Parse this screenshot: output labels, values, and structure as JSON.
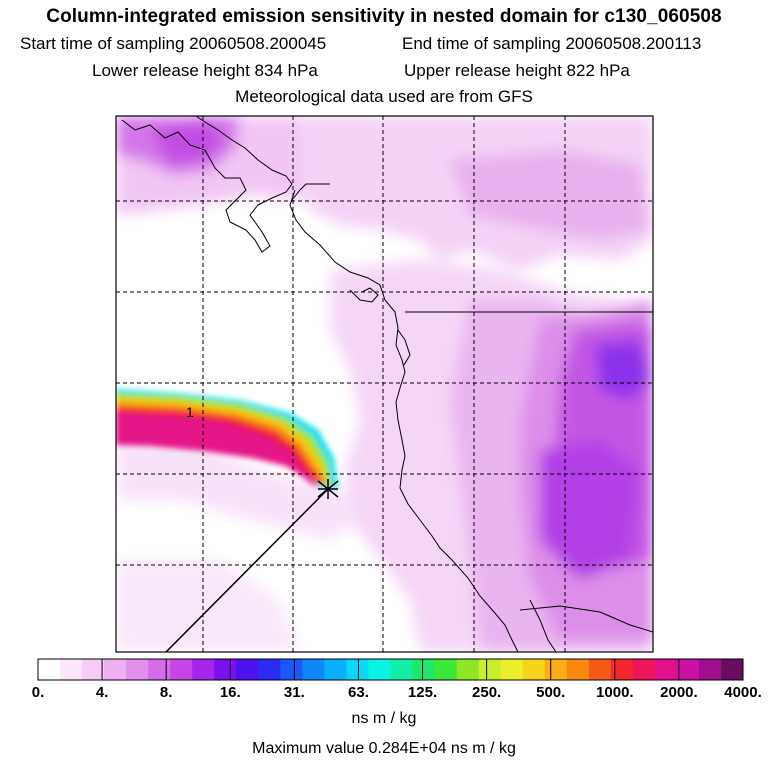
{
  "header": {
    "title": "Column-integrated emission sensitivity in nested domain for c130_060508",
    "start_label": "Start time of sampling 20060508.200045",
    "end_label": "End time of sampling 20060508.200113",
    "lower_label": "Lower release height  834 hPa",
    "upper_label": "Upper release height  822 hPa",
    "met_label": "Meteorological data used are from GFS"
  },
  "map": {
    "trajectory_marker": "1",
    "release_marker": "release-point-cross"
  },
  "colorbar": {
    "colors": [
      "#ffffff",
      "#fbe6fb",
      "#f6ccf6",
      "#efb0f1",
      "#e38fec",
      "#d66be8",
      "#c645e6",
      "#a526ea",
      "#7a10ec",
      "#4e12ee",
      "#2b2bf4",
      "#1a58f8",
      "#0f86fb",
      "#0ab0fb",
      "#08d8fa",
      "#0af2e2",
      "#11eea6",
      "#1ee86a",
      "#3ee63a",
      "#8ee62a",
      "#c6ee2a",
      "#ecee2a",
      "#f7d41c",
      "#f8ae14",
      "#f8880f",
      "#f65a18",
      "#f2282c",
      "#ef145a",
      "#e30f8c",
      "#c810a5",
      "#a00f8e",
      "#6a0d60"
    ],
    "tick_labels": [
      "0.",
      "4.",
      "8.",
      "16.",
      "31.",
      "63.",
      "125.",
      "250.",
      "500.",
      "1000.",
      "2000.",
      "4000."
    ],
    "units": "ns m / kg"
  },
  "footer": {
    "max_value": "Maximum value  0.284E+04 ns m / kg"
  }
}
